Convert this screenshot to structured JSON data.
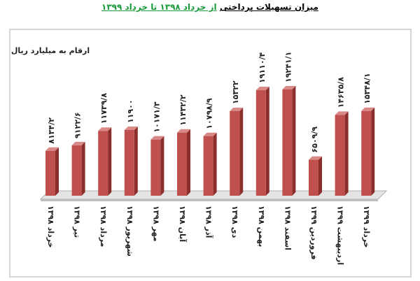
{
  "chart_data": {
    "type": "bar3d",
    "title": "میزان تسهیلات پرداختی",
    "title_highlight": "از خرداد ۱۳۹۸ تا خرداد ۱۳۹۹",
    "unit_label": "ارقام به میلیارد ریال",
    "categories": [
      "خرداد ۱۳۹۸",
      "تیر ۱۳۹۸",
      "مرداد ۱۳۹۸",
      "شهریور ۱۳۹۸",
      "مهر ۱۳۹۸",
      "آبان ۱۳۹۸",
      "آذر ۱۳۹۸",
      "دی ۱۳۹۸",
      "بهمن ۱۳۹۸",
      "اسفند ۱۳۹۸",
      "فروردین ۱۳۹۹",
      "اردیبهشت ۱۳۹۹",
      "خرداد ۱۳۹۹"
    ],
    "values": [
      8134.2,
      9122.6,
      11739.8,
      11900,
      10171.3,
      11432.2,
      10798.9,
      15322,
      19110.4,
      19241.1,
      6509.9,
      14635.8,
      15348.1
    ],
    "value_labels": [
      "۸۱۳۴/۲",
      "۹۱۲۲/۶",
      "۱۱۷۳۹/۸",
      "۱۱۹۰۰",
      "۱۰۱۷۱/۳",
      "۱۱۴۳۲/۲",
      "۱۰۷۹۸/۹",
      "۱۵۳۲۲",
      "۱۹۱۱۰/۴",
      "۱۹۲۴۱/۱",
      "۶۵۰۹/۹",
      "۱۴۶۳۵/۸",
      "۱۵۳۴۸/۱"
    ],
    "color": "#c0504d"
  }
}
